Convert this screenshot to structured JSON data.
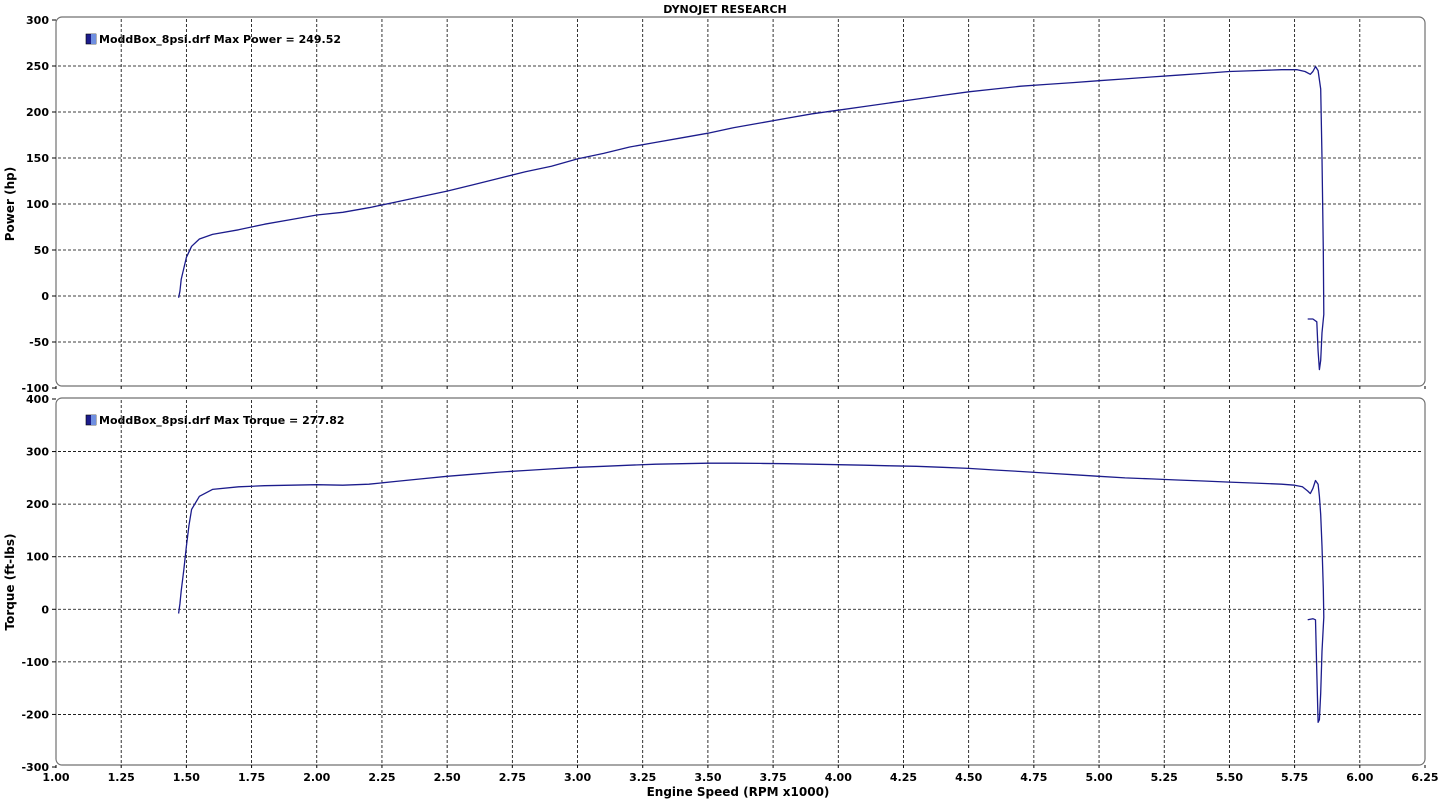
{
  "title": "DYNOJET RESEARCH",
  "xlabel": "Engine Speed (RPM x1000)",
  "colors": {
    "series": "#1c1c8c",
    "panel_border": "#707070",
    "grid": "#000000"
  },
  "chart_data": [
    {
      "type": "line",
      "ylabel": "Power (hp)",
      "ylim": [
        -100,
        300
      ],
      "yticks": [
        300,
        250,
        200,
        150,
        100,
        50,
        0,
        -50,
        -100
      ],
      "xlim": [
        1.0,
        6.25
      ],
      "xticks": [
        "1.00",
        "1.25",
        "1.50",
        "1.75",
        "2.00",
        "2.25",
        "2.50",
        "2.75",
        "3.00",
        "3.25",
        "3.50",
        "3.75",
        "4.00",
        "4.25",
        "4.50",
        "4.75",
        "5.00",
        "5.25",
        "5.50",
        "5.75",
        "6.00",
        "6.25"
      ],
      "grid": true,
      "legend": "top-left",
      "series": [
        {
          "name": "ModdBox_8psi.drf Max Power = 249.52",
          "points": [
            [
              1.47,
              -2
            ],
            [
              1.475,
              5
            ],
            [
              1.48,
              18
            ],
            [
              1.49,
              30
            ],
            [
              1.5,
              42
            ],
            [
              1.52,
              54
            ],
            [
              1.55,
              62
            ],
            [
              1.6,
              67
            ],
            [
              1.7,
              72
            ],
            [
              1.8,
              78
            ],
            [
              1.9,
              83
            ],
            [
              2.0,
              88
            ],
            [
              2.1,
              91
            ],
            [
              2.2,
              96
            ],
            [
              2.3,
              102
            ],
            [
              2.4,
              108
            ],
            [
              2.5,
              114
            ],
            [
              2.6,
              121
            ],
            [
              2.7,
              128
            ],
            [
              2.8,
              135
            ],
            [
              2.9,
              141
            ],
            [
              3.0,
              149
            ],
            [
              3.1,
              155
            ],
            [
              3.2,
              162
            ],
            [
              3.3,
              167
            ],
            [
              3.4,
              172
            ],
            [
              3.5,
              177
            ],
            [
              3.6,
              183
            ],
            [
              3.7,
              188
            ],
            [
              3.8,
              193
            ],
            [
              3.9,
              198
            ],
            [
              4.0,
              202
            ],
            [
              4.1,
              206
            ],
            [
              4.2,
              210
            ],
            [
              4.3,
              214
            ],
            [
              4.4,
              218
            ],
            [
              4.5,
              222
            ],
            [
              4.6,
              225
            ],
            [
              4.7,
              228
            ],
            [
              4.8,
              230
            ],
            [
              4.9,
              232
            ],
            [
              5.0,
              234
            ],
            [
              5.1,
              236
            ],
            [
              5.2,
              238
            ],
            [
              5.3,
              240
            ],
            [
              5.4,
              242
            ],
            [
              5.5,
              244
            ],
            [
              5.6,
              245
            ],
            [
              5.7,
              246
            ],
            [
              5.76,
              246
            ],
            [
              5.79,
              244
            ],
            [
              5.81,
              241
            ],
            [
              5.82,
              244
            ],
            [
              5.83,
              249.5
            ],
            [
              5.84,
              245
            ],
            [
              5.85,
              225
            ],
            [
              5.855,
              150
            ],
            [
              5.86,
              50
            ],
            [
              5.862,
              -20
            ],
            [
              5.855,
              -40
            ],
            [
              5.85,
              -70
            ],
            [
              5.845,
              -80
            ],
            [
              5.84,
              -60
            ],
            [
              5.835,
              -28
            ],
            [
              5.82,
              -25
            ],
            [
              5.8,
              -25
            ]
          ]
        }
      ]
    },
    {
      "type": "line",
      "ylabel": "Torque (ft-lbs)",
      "ylim": [
        -300,
        400
      ],
      "yticks": [
        400,
        300,
        200,
        100,
        0,
        -100,
        -200,
        -300
      ],
      "xlim": [
        1.0,
        6.25
      ],
      "xticks": [
        "1.00",
        "1.25",
        "1.50",
        "1.75",
        "2.00",
        "2.25",
        "2.50",
        "2.75",
        "3.00",
        "3.25",
        "3.50",
        "3.75",
        "4.00",
        "4.25",
        "4.50",
        "4.75",
        "5.00",
        "5.25",
        "5.50",
        "5.75",
        "6.00",
        "6.25"
      ],
      "grid": true,
      "legend": "top-left",
      "series": [
        {
          "name": "ModdBox_8psi.drf Max Torque = 277.82",
          "points": [
            [
              1.47,
              -8
            ],
            [
              1.475,
              10
            ],
            [
              1.48,
              35
            ],
            [
              1.49,
              75
            ],
            [
              1.5,
              120
            ],
            [
              1.51,
              160
            ],
            [
              1.52,
              190
            ],
            [
              1.55,
              215
            ],
            [
              1.6,
              228
            ],
            [
              1.7,
              233
            ],
            [
              1.8,
              235
            ],
            [
              1.9,
              236
            ],
            [
              2.0,
              237
            ],
            [
              2.1,
              236
            ],
            [
              2.2,
              238
            ],
            [
              2.3,
              243
            ],
            [
              2.4,
              248
            ],
            [
              2.5,
              253
            ],
            [
              2.6,
              257
            ],
            [
              2.7,
              261
            ],
            [
              2.8,
              264
            ],
            [
              2.9,
              267
            ],
            [
              3.0,
              270
            ],
            [
              3.1,
              272
            ],
            [
              3.2,
              274
            ],
            [
              3.3,
              276
            ],
            [
              3.4,
              277
            ],
            [
              3.5,
              277.8
            ],
            [
              3.6,
              277.8
            ],
            [
              3.7,
              277.5
            ],
            [
              3.8,
              277
            ],
            [
              3.9,
              276
            ],
            [
              4.0,
              275
            ],
            [
              4.1,
              274
            ],
            [
              4.2,
              273
            ],
            [
              4.3,
              272
            ],
            [
              4.4,
              270
            ],
            [
              4.5,
              268
            ],
            [
              4.6,
              265
            ],
            [
              4.7,
              262
            ],
            [
              4.8,
              259
            ],
            [
              4.9,
              256
            ],
            [
              5.0,
              253
            ],
            [
              5.1,
              250
            ],
            [
              5.2,
              248
            ],
            [
              5.3,
              246
            ],
            [
              5.4,
              244
            ],
            [
              5.5,
              242
            ],
            [
              5.6,
              240
            ],
            [
              5.7,
              238
            ],
            [
              5.75,
              236
            ],
            [
              5.78,
              233
            ],
            [
              5.8,
              225
            ],
            [
              5.81,
              220
            ],
            [
              5.82,
              230
            ],
            [
              5.83,
              245
            ],
            [
              5.84,
              238
            ],
            [
              5.845,
              215
            ],
            [
              5.85,
              180
            ],
            [
              5.855,
              120
            ],
            [
              5.86,
              40
            ],
            [
              5.862,
              -15
            ],
            [
              5.855,
              -80
            ],
            [
              5.85,
              -160
            ],
            [
              5.845,
              -210
            ],
            [
              5.84,
              -215
            ],
            [
              5.835,
              -120
            ],
            [
              5.83,
              -20
            ],
            [
              5.82,
              -18
            ],
            [
              5.8,
              -20
            ]
          ]
        }
      ]
    }
  ]
}
